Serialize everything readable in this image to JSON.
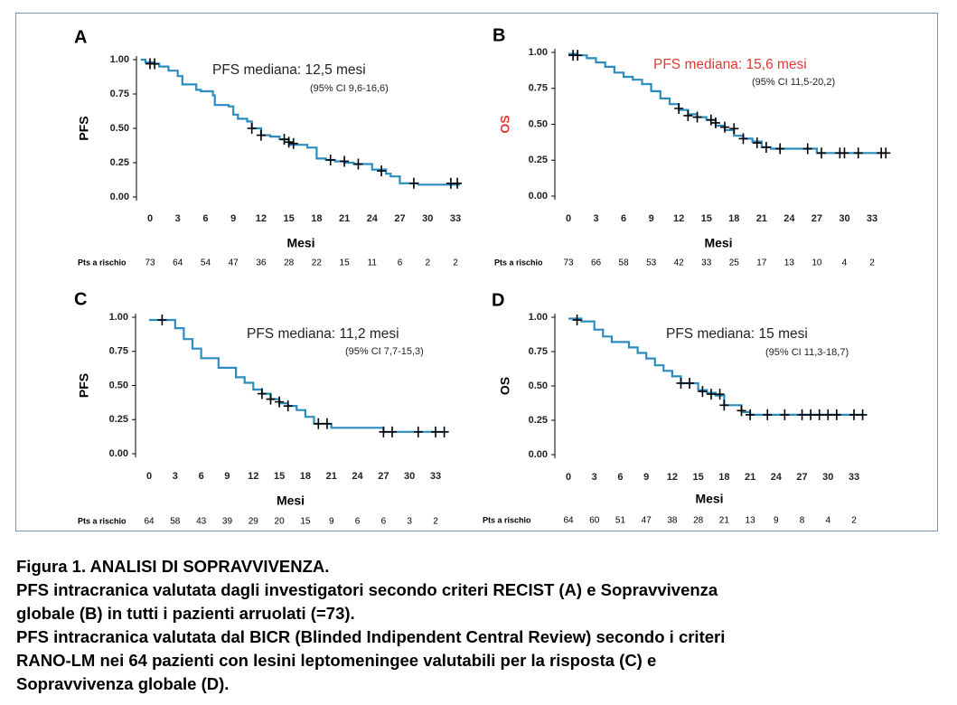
{
  "caption": {
    "title": "Figura 1. ANALISI DI SOPRAVVIVENZA.",
    "line1": "PFS intracranica  valutata dagli investigatori secondo criteri RECIST (A) e  Sopravvivenza",
    "line2": "globale (B) in tutti i pazienti arruolati (=73).",
    "line3": "PFS intracranica valutata dal BICR (Blinded Indipendent Central Review) secondo i criteri",
    "line4": "RANO-LM nei 64 pazienti con lesini leptomeningee valutabili per la risposta (C) e",
    "line5": "Sopravvivenza globale (D)."
  },
  "colors": {
    "curve": "#2b8cbf",
    "censor": "#000000",
    "highlight": "#e53935",
    "frame": "#7a96b8"
  },
  "chart_data": [
    {
      "type": "line",
      "panel": "A",
      "ylabel": "PFS",
      "xlabel": "Mesi",
      "median_text": "PFS mediana: 12,5 mesi",
      "ci_text": "(95% CI 9,6-16,6)",
      "highlight": false,
      "xlim": [
        0,
        33
      ],
      "ylim": [
        0,
        1
      ],
      "xticks": [
        0,
        3,
        6,
        9,
        12,
        15,
        18,
        21,
        24,
        27,
        30,
        33
      ],
      "yticks": [
        "0.00",
        "0.25",
        "0.50",
        "0.75",
        "1.00"
      ],
      "risk_label": "Pts a rischio",
      "at_risk": [
        "73",
        "64",
        "54",
        "47",
        "36",
        "28",
        "22",
        "15",
        "11",
        "6",
        "2",
        "2"
      ],
      "curve": [
        [
          -1,
          1.0
        ],
        [
          -0.5,
          0.98
        ],
        [
          0.5,
          0.97
        ],
        [
          1,
          0.95
        ],
        [
          2,
          0.92
        ],
        [
          3,
          0.88
        ],
        [
          3.5,
          0.82
        ],
        [
          5,
          0.78
        ],
        [
          5.5,
          0.77
        ],
        [
          6.8,
          0.74
        ],
        [
          7,
          0.67
        ],
        [
          8.5,
          0.66
        ],
        [
          9,
          0.6
        ],
        [
          9.5,
          0.57
        ],
        [
          10.5,
          0.55
        ],
        [
          11,
          0.5
        ],
        [
          12,
          0.45
        ],
        [
          13,
          0.44
        ],
        [
          14,
          0.42
        ],
        [
          15,
          0.38
        ],
        [
          17,
          0.36
        ],
        [
          18,
          0.28
        ],
        [
          19,
          0.27
        ],
        [
          20,
          0.26
        ],
        [
          21,
          0.25
        ],
        [
          22,
          0.24
        ],
        [
          24,
          0.2
        ],
        [
          25.5,
          0.17
        ],
        [
          26,
          0.15
        ],
        [
          27,
          0.1
        ],
        [
          29,
          0.09
        ],
        [
          33.5,
          0.09
        ]
      ],
      "censors": [
        [
          0,
          0.97
        ],
        [
          0.5,
          0.97
        ],
        [
          11,
          0.5
        ],
        [
          12,
          0.45
        ],
        [
          14.5,
          0.42
        ],
        [
          15,
          0.4
        ],
        [
          15.5,
          0.39
        ],
        [
          19.5,
          0.27
        ],
        [
          21,
          0.26
        ],
        [
          22.5,
          0.24
        ],
        [
          25,
          0.19
        ],
        [
          28.5,
          0.1
        ],
        [
          32.5,
          0.1
        ],
        [
          33.2,
          0.1
        ]
      ]
    },
    {
      "type": "line",
      "panel": "B",
      "ylabel": "OS",
      "xlabel": "Mesi",
      "median_text": "PFS mediana: 15,6 mesi",
      "ci_text": "(95% CI 11,5-20,2)",
      "highlight": true,
      "xlim": [
        0,
        33
      ],
      "ylim": [
        0,
        1
      ],
      "xticks": [
        0,
        3,
        6,
        9,
        12,
        15,
        18,
        21,
        24,
        27,
        30,
        33
      ],
      "yticks": [
        "0.00",
        "0.25",
        "0.50",
        "0.75",
        "1.00"
      ],
      "risk_label": "Pts a rischio",
      "at_risk": [
        "73",
        "66",
        "58",
        "53",
        "42",
        "33",
        "25",
        "17",
        "13",
        "10",
        "4",
        "2"
      ],
      "curve": [
        [
          0,
          0.99
        ],
        [
          1,
          0.98
        ],
        [
          2,
          0.96
        ],
        [
          3,
          0.93
        ],
        [
          4,
          0.9
        ],
        [
          5,
          0.86
        ],
        [
          6,
          0.83
        ],
        [
          7,
          0.81
        ],
        [
          8,
          0.78
        ],
        [
          9,
          0.73
        ],
        [
          10,
          0.68
        ],
        [
          11,
          0.64
        ],
        [
          12,
          0.6
        ],
        [
          13,
          0.57
        ],
        [
          14,
          0.55
        ],
        [
          15,
          0.53
        ],
        [
          16,
          0.49
        ],
        [
          17,
          0.46
        ],
        [
          18,
          0.42
        ],
        [
          19,
          0.4
        ],
        [
          20,
          0.38
        ],
        [
          21,
          0.34
        ],
        [
          22,
          0.33
        ],
        [
          26,
          0.33
        ],
        [
          27,
          0.3
        ],
        [
          34.5,
          0.3
        ]
      ],
      "censors": [
        [
          0.5,
          0.98
        ],
        [
          1,
          0.98
        ],
        [
          12,
          0.61
        ],
        [
          13,
          0.56
        ],
        [
          14,
          0.55
        ],
        [
          15.5,
          0.53
        ],
        [
          16,
          0.51
        ],
        [
          17,
          0.48
        ],
        [
          18,
          0.47
        ],
        [
          19,
          0.4
        ],
        [
          20.5,
          0.37
        ],
        [
          21.5,
          0.34
        ],
        [
          23,
          0.33
        ],
        [
          26,
          0.33
        ],
        [
          27.5,
          0.3
        ],
        [
          29.5,
          0.3
        ],
        [
          30,
          0.3
        ],
        [
          31.5,
          0.3
        ],
        [
          34,
          0.3
        ],
        [
          34.5,
          0.3
        ]
      ]
    },
    {
      "type": "line",
      "panel": "C",
      "ylabel": "PFS",
      "xlabel": "Mesi",
      "median_text": "PFS mediana: 11,2 mesi",
      "ci_text": "(95% CI 7,7-15,3)",
      "highlight": false,
      "xlim": [
        0,
        33
      ],
      "ylim": [
        0,
        1
      ],
      "xticks": [
        0,
        3,
        6,
        9,
        12,
        15,
        18,
        21,
        24,
        27,
        30,
        33
      ],
      "yticks": [
        "0.00",
        "0.25",
        "0.50",
        "0.75",
        "1.00"
      ],
      "risk_label": "Pts a rischio",
      "at_risk": [
        "64",
        "58",
        "43",
        "39",
        "29",
        "20",
        "15",
        "9",
        "6",
        "6",
        "3",
        "2"
      ],
      "curve": [
        [
          0,
          0.98
        ],
        [
          2,
          0.98
        ],
        [
          3,
          0.92
        ],
        [
          4,
          0.84
        ],
        [
          5,
          0.77
        ],
        [
          6,
          0.7
        ],
        [
          8,
          0.63
        ],
        [
          10,
          0.56
        ],
        [
          11,
          0.52
        ],
        [
          12,
          0.47
        ],
        [
          13,
          0.44
        ],
        [
          14,
          0.4
        ],
        [
          15,
          0.37
        ],
        [
          16,
          0.35
        ],
        [
          17,
          0.32
        ],
        [
          18,
          0.27
        ],
        [
          19,
          0.22
        ],
        [
          21,
          0.19
        ],
        [
          27,
          0.16
        ],
        [
          34,
          0.16
        ]
      ],
      "censors": [
        [
          1.5,
          0.98
        ],
        [
          13,
          0.44
        ],
        [
          14,
          0.4
        ],
        [
          15,
          0.38
        ],
        [
          16,
          0.35
        ],
        [
          19.5,
          0.22
        ],
        [
          20.5,
          0.22
        ],
        [
          27,
          0.16
        ],
        [
          28,
          0.16
        ],
        [
          31,
          0.16
        ],
        [
          33,
          0.16
        ],
        [
          34,
          0.16
        ]
      ]
    },
    {
      "type": "line",
      "panel": "D",
      "ylabel": "OS",
      "xlabel": "Mesi",
      "median_text": "PFS mediana: 15 mesi",
      "ci_text": "(95% CI 11,3-18,7)",
      "highlight": false,
      "xlim": [
        0,
        33
      ],
      "ylim": [
        0,
        1
      ],
      "xticks": [
        0,
        3,
        6,
        9,
        12,
        15,
        18,
        21,
        24,
        27,
        30,
        33
      ],
      "yticks": [
        "0.00",
        "0.25",
        "0.50",
        "0.75",
        "1.00"
      ],
      "risk_label": "Pts a rischio",
      "at_risk": [
        "64",
        "60",
        "51",
        "47",
        "38",
        "28",
        "21",
        "13",
        "9",
        "8",
        "4",
        "2"
      ],
      "curve": [
        [
          0,
          0.99
        ],
        [
          1.5,
          0.97
        ],
        [
          3,
          0.91
        ],
        [
          4,
          0.86
        ],
        [
          5,
          0.82
        ],
        [
          7,
          0.78
        ],
        [
          8,
          0.74
        ],
        [
          9,
          0.7
        ],
        [
          10,
          0.65
        ],
        [
          11,
          0.61
        ],
        [
          12,
          0.57
        ],
        [
          13,
          0.52
        ],
        [
          15,
          0.47
        ],
        [
          16,
          0.45
        ],
        [
          17,
          0.43
        ],
        [
          18,
          0.36
        ],
        [
          20,
          0.31
        ],
        [
          21,
          0.29
        ],
        [
          34,
          0.29
        ]
      ],
      "censors": [
        [
          1,
          0.98
        ],
        [
          13,
          0.52
        ],
        [
          14,
          0.52
        ],
        [
          15.5,
          0.46
        ],
        [
          16.5,
          0.44
        ],
        [
          17.5,
          0.44
        ],
        [
          18,
          0.36
        ],
        [
          20,
          0.32
        ],
        [
          21,
          0.29
        ],
        [
          23,
          0.29
        ],
        [
          25,
          0.29
        ],
        [
          27,
          0.29
        ],
        [
          28,
          0.29
        ],
        [
          29,
          0.29
        ],
        [
          30,
          0.29
        ],
        [
          31,
          0.29
        ],
        [
          33,
          0.29
        ],
        [
          34,
          0.29
        ]
      ]
    }
  ]
}
